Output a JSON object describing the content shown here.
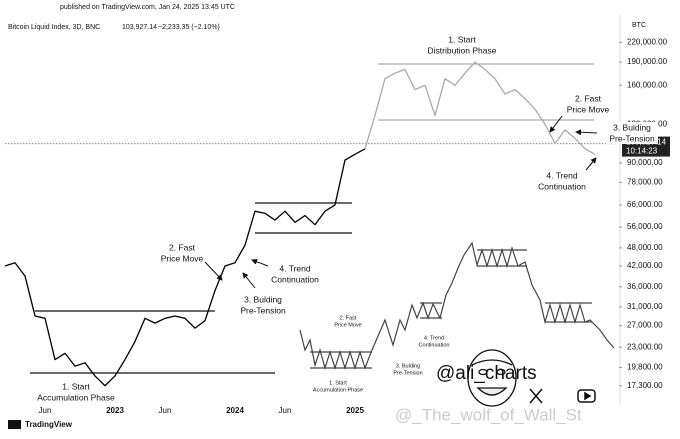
{
  "chart_data": {
    "type": "line",
    "published": "published on TradingView.com, Jan 24, 2025 13:45 UTC",
    "title": "Bitcoin Liquid Index, 3D, BNC",
    "change": "−2,233.35 (−2.10%)",
    "last": {
      "value": 103927.14,
      "label": "103,927.14"
    },
    "countdown": "10:14:23",
    "currency": "BTC",
    "log_scale": true,
    "grid": false,
    "categories": [
      null,
      null,
      null,
      null,
      "Jun",
      null,
      null,
      null,
      null,
      null,
      null,
      "2023",
      null,
      null,
      null,
      null,
      "Jun",
      null,
      null,
      null,
      null,
      null,
      null,
      "2024",
      null,
      null,
      null,
      null,
      "Jun",
      null,
      null,
      null,
      null,
      null,
      null,
      "2025",
      null,
      null,
      null,
      null,
      null,
      null,
      null,
      null,
      null,
      null,
      null,
      null,
      null,
      null,
      null,
      null,
      null,
      null,
      null,
      null,
      null,
      null,
      null,
      null
    ],
    "series": [
      {
        "color": "#000000",
        "values": [
          42000,
          43000,
          39000,
          29000,
          28500,
          21000,
          22000,
          20000,
          20500,
          18600,
          17300,
          18600,
          21000,
          24000,
          28500,
          27500,
          28500,
          29000,
          28500,
          26500,
          28000,
          35000,
          42000,
          43000,
          49000,
          63000,
          62000,
          59000,
          63000,
          58000,
          61000,
          57000,
          63000,
          66000,
          92000,
          96000,
          100000,
          null,
          null,
          null,
          null,
          null,
          null,
          null,
          null,
          null,
          null,
          null,
          null,
          null,
          null,
          null,
          null,
          null,
          null,
          null,
          null,
          null,
          null,
          null
        ]
      },
      {
        "color": "#aaaaaa",
        "values": [
          null,
          null,
          null,
          null,
          null,
          null,
          null,
          null,
          null,
          null,
          null,
          null,
          null,
          null,
          null,
          null,
          null,
          null,
          null,
          null,
          null,
          null,
          null,
          null,
          null,
          null,
          null,
          null,
          null,
          null,
          null,
          null,
          null,
          null,
          null,
          null,
          100000,
          128000,
          168000,
          175000,
          180000,
          155000,
          160000,
          128000,
          168000,
          160000,
          175000,
          190000,
          180000,
          168000,
          150000,
          155000,
          145000,
          134000,
          120000,
          104000,
          115000,
          108000,
          100000,
          96000
        ]
      }
    ],
    "ylim": [
      15000,
      290000
    ],
    "yticks": [
      {
        "value": 220000,
        "label": "220,000.00"
      },
      {
        "value": 190000,
        "label": "190,000.00"
      },
      {
        "value": 160000,
        "label": "160,000.00"
      },
      {
        "value": 120000,
        "label": "120,000.00"
      },
      {
        "value": 90000,
        "label": "90,000.00"
      },
      {
        "value": 78000,
        "label": "78,000.00"
      },
      {
        "value": 66000,
        "label": "66,000.00"
      },
      {
        "value": 56000,
        "label": "56,000.00"
      },
      {
        "value": 48000,
        "label": "48,000.00"
      },
      {
        "value": 42000,
        "label": "42,000.00"
      },
      {
        "value": 36000,
        "label": "36,000.00"
      },
      {
        "value": 31000,
        "label": "31,000.00"
      },
      {
        "value": 27000,
        "label": "27,000.00"
      },
      {
        "value": 23000,
        "label": "23,000.00"
      },
      {
        "value": 19800,
        "label": "19,800.00"
      },
      {
        "value": 17300,
        "label": "17,300.00"
      }
    ],
    "annotations": [
      [
        "1. Start",
        "Accumulation Phase"
      ],
      [
        "2. Fast",
        "Price Move"
      ],
      [
        "3. Bulding",
        "Pre-Tension"
      ],
      [
        "4. Trend",
        "Continuation"
      ],
      [
        "1. Start",
        "Distribution Phase"
      ],
      [
        "2. Fast",
        "Price Move"
      ],
      [
        "3. Bulding",
        "Pre-Tension"
      ],
      [
        "4. Trend",
        "Continuation"
      ]
    ],
    "inset_labels": [
      [
        "1. Start",
        "Accumulation Phase"
      ],
      [
        "2. Fast",
        "Price Move"
      ],
      [
        "3. Bulding",
        "Pre-Tension"
      ],
      [
        "4. Trend",
        "Continuation"
      ]
    ],
    "handle": "@ali_charts",
    "watermark": "@_The_wolf_of_Wall_St",
    "brand": "TradingView"
  }
}
